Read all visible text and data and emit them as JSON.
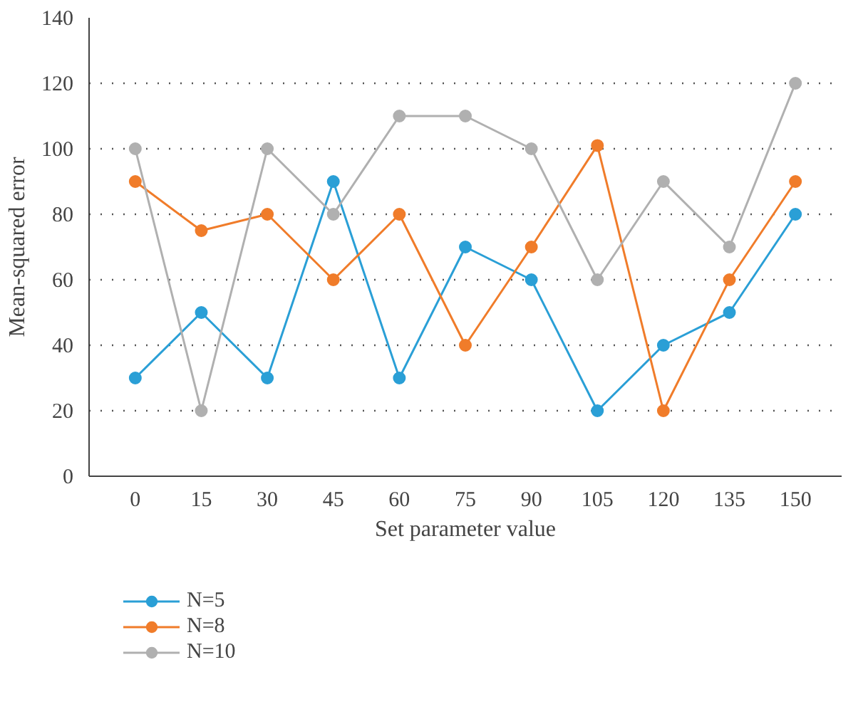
{
  "chart_data": {
    "type": "line",
    "xlabel": "Set parameter value",
    "ylabel": "Mean-squared error",
    "categories": [
      "0",
      "15",
      "30",
      "45",
      "60",
      "75",
      "90",
      "105",
      "120",
      "135",
      "150"
    ],
    "series": [
      {
        "name": "N=5",
        "color": "#2a9fd6",
        "values": [
          30,
          50,
          30,
          90,
          30,
          70,
          60,
          20,
          40,
          50,
          80
        ]
      },
      {
        "name": "N=8",
        "color": "#f07c2a",
        "values": [
          90,
          75,
          80,
          60,
          80,
          40,
          70,
          101,
          20,
          60,
          90
        ]
      },
      {
        "name": "N=10",
        "color": "#b0b0b0",
        "values": [
          100,
          20,
          100,
          80,
          110,
          110,
          100,
          60,
          90,
          70,
          120
        ]
      }
    ],
    "ylim": [
      0,
      140
    ],
    "yticks": [
      0,
      20,
      40,
      60,
      80,
      100,
      120,
      140
    ],
    "grid": "y",
    "legend": "bottom",
    "marker": "circle",
    "line_style": "solid"
  }
}
